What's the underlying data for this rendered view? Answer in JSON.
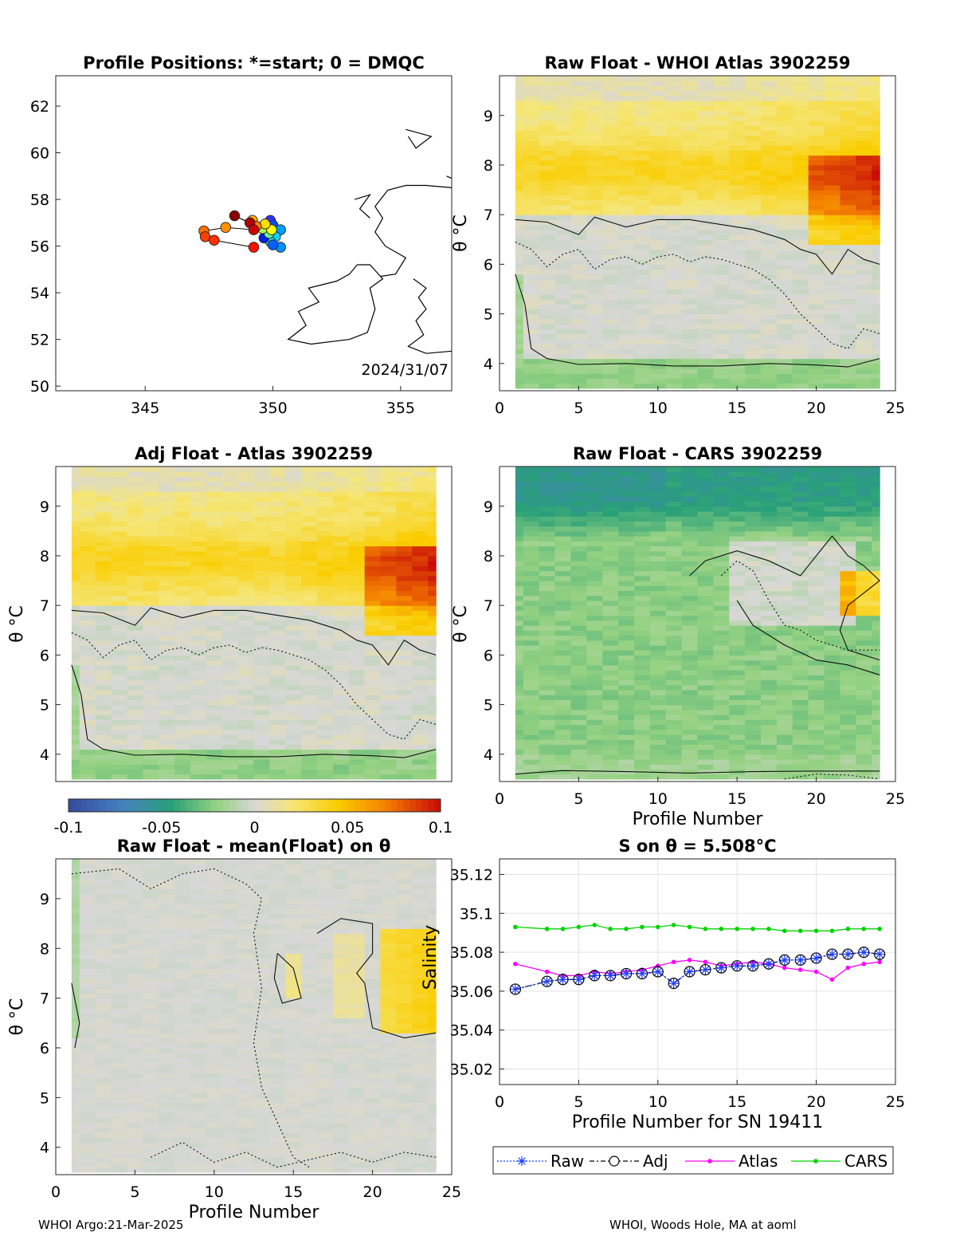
{
  "footer": {
    "left": "WHOI Argo:21-Mar-2025",
    "right": "WHOI, Woods Hole, MA at aoml"
  },
  "colors": {
    "raw": "#1f3fff",
    "adj": "#000000",
    "atlas": "#ff00ff",
    "cars": "#00d400"
  },
  "chart_data": [
    {
      "id": "map",
      "type": "scatter",
      "title": "Profile Positions: *=start; 0 = DMQC",
      "annotation": "2024/31/07",
      "xlim": [
        341.5,
        357
      ],
      "ylim": [
        49.8,
        63.3
      ],
      "xticks": [
        "345",
        "350",
        "355"
      ],
      "yticks": [
        "50",
        "52",
        "54",
        "56",
        "58",
        "60",
        "62"
      ],
      "start_marker": "*",
      "points": [
        {
          "lon": 349.9,
          "lat": 57.1,
          "c": "#3030ff"
        },
        {
          "lon": 350.0,
          "lat": 56.9,
          "c": "#0050ff"
        },
        {
          "lon": 350.3,
          "lat": 56.7,
          "c": "#00a0ff"
        },
        {
          "lon": 350.1,
          "lat": 56.4,
          "c": "#10d0ff"
        },
        {
          "lon": 349.9,
          "lat": 56.2,
          "c": "#20e0e0"
        },
        {
          "lon": 350.3,
          "lat": 55.95,
          "c": "#0090ff"
        },
        {
          "lon": 350.0,
          "lat": 56.05,
          "c": "#0060ff"
        },
        {
          "lon": 349.65,
          "lat": 56.35,
          "c": "#0020e0"
        },
        {
          "lon": 349.85,
          "lat": 56.55,
          "c": "#60ffa0"
        },
        {
          "lon": 349.6,
          "lat": 56.75,
          "c": "#b0ff50"
        },
        {
          "lon": 349.95,
          "lat": 56.7,
          "c": "#ffff00"
        },
        {
          "lon": 349.7,
          "lat": 56.95,
          "c": "#ffe000"
        },
        {
          "lon": 349.2,
          "lat": 57.1,
          "c": "#ffb000"
        },
        {
          "lon": 349.35,
          "lat": 56.85,
          "c": "#ff8000"
        },
        {
          "lon": 348.5,
          "lat": 57.3,
          "c": "#8b0000"
        },
        {
          "lon": 349.1,
          "lat": 57.0,
          "c": "#b00000"
        },
        {
          "lon": 349.25,
          "lat": 56.7,
          "c": "#d00000"
        },
        {
          "lon": 348.15,
          "lat": 56.8,
          "c": "#ff9000"
        },
        {
          "lon": 347.3,
          "lat": 56.65,
          "c": "#ff7000"
        },
        {
          "lon": 347.35,
          "lat": 56.4,
          "c": "#ff4000"
        },
        {
          "lon": 347.7,
          "lat": 56.25,
          "c": "#ff3000"
        },
        {
          "lon": 349.25,
          "lat": 55.95,
          "c": "#ff1000"
        }
      ]
    },
    {
      "id": "raw-atlas",
      "type": "heatmap",
      "title": "Raw Float - WHOI Atlas  3902259",
      "ylabel": "θ °C",
      "xlim": [
        0,
        25
      ],
      "ylim": [
        3.45,
        9.8
      ],
      "xticks": [
        "0",
        "5",
        "10",
        "15",
        "20",
        "25"
      ],
      "yticks": [
        "4",
        "5",
        "6",
        "7",
        "8",
        "9"
      ]
    },
    {
      "id": "raw-cars",
      "type": "heatmap",
      "title": "Raw Float - CARS  3902259",
      "xlabel": "Profile Number",
      "ylabel": "θ °C",
      "xlim": [
        0,
        25
      ],
      "ylim": [
        3.45,
        9.8
      ],
      "xticks": [
        "0",
        "5",
        "10",
        "15",
        "20",
        "25"
      ],
      "yticks": [
        "4",
        "5",
        "6",
        "7",
        "8",
        "9"
      ]
    },
    {
      "id": "adj-atlas",
      "type": "heatmap",
      "title": "Adj Float - Atlas  3902259",
      "ylabel": "θ °C",
      "xlim": [
        0,
        25
      ],
      "ylim": [
        3.45,
        9.8
      ],
      "yticks": [
        "4",
        "5",
        "6",
        "7",
        "8",
        "9"
      ]
    },
    {
      "id": "colorbar",
      "type": "colorbar",
      "range": [
        -0.1,
        0.1
      ],
      "ticks": [
        "-0.1",
        "-0.05",
        "0",
        "0.05",
        "0.1"
      ]
    },
    {
      "id": "raw-mean",
      "type": "heatmap",
      "title": "Raw Float - mean(Float) on θ",
      "xlabel": "Profile Number",
      "ylabel": "θ °C",
      "xlim": [
        0,
        25
      ],
      "ylim": [
        3.45,
        9.8
      ],
      "xticks": [
        "0",
        "5",
        "10",
        "15",
        "20",
        "25"
      ],
      "yticks": [
        "4",
        "5",
        "6",
        "7",
        "8",
        "9"
      ]
    },
    {
      "id": "salinity",
      "type": "line",
      "title": "S on θ = 5.508°C",
      "xlabel": "Profile Number for SN 19411",
      "ylabel": "Salinity",
      "xlim": [
        0,
        25
      ],
      "ylim": [
        35.012,
        35.128
      ],
      "xticks": [
        "0",
        "5",
        "10",
        "15",
        "20",
        "25"
      ],
      "yticks": [
        "35.02",
        "35.04",
        "35.06",
        "35.08",
        "35.1",
        "35.12"
      ],
      "legend": "bottom",
      "x": [
        1,
        3,
        4,
        5,
        6,
        7,
        8,
        9,
        10,
        11,
        12,
        13,
        14,
        15,
        16,
        17,
        18,
        19,
        20,
        21,
        22,
        23,
        24
      ],
      "series": [
        {
          "name": "Raw",
          "values": [
            35.061,
            35.065,
            35.066,
            35.066,
            35.068,
            35.068,
            35.069,
            35.069,
            35.07,
            35.064,
            35.07,
            35.071,
            35.072,
            35.073,
            35.073,
            35.074,
            35.076,
            35.076,
            35.077,
            35.079,
            35.079,
            35.08,
            35.079
          ]
        },
        {
          "name": "Adj",
          "values": [
            35.061,
            35.065,
            35.066,
            35.066,
            35.068,
            35.068,
            35.069,
            35.069,
            35.07,
            35.064,
            35.07,
            35.071,
            35.072,
            35.073,
            35.073,
            35.074,
            35.076,
            35.076,
            35.077,
            35.079,
            35.079,
            35.08,
            35.079
          ]
        },
        {
          "name": "Atlas",
          "values": [
            35.074,
            35.07,
            35.068,
            35.068,
            35.07,
            35.069,
            35.07,
            35.071,
            35.073,
            35.075,
            35.076,
            35.075,
            35.073,
            35.074,
            35.075,
            35.074,
            35.072,
            35.071,
            35.07,
            35.066,
            35.072,
            35.074,
            35.075
          ]
        },
        {
          "name": "CARS",
          "values": [
            35.093,
            35.092,
            35.092,
            35.093,
            35.094,
            35.092,
            35.092,
            35.093,
            35.093,
            35.094,
            35.093,
            35.092,
            35.092,
            35.092,
            35.092,
            35.092,
            35.091,
            35.091,
            35.091,
            35.091,
            35.092,
            35.092,
            35.092
          ]
        }
      ]
    }
  ]
}
